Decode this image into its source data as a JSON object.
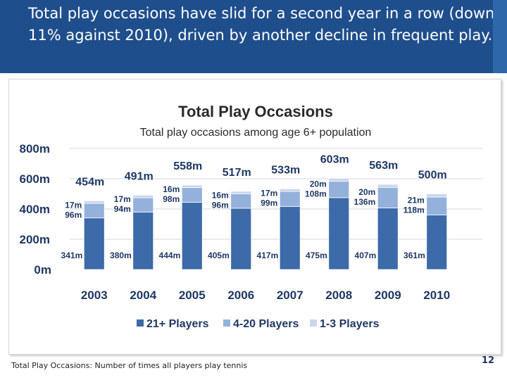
{
  "slide": {
    "title": "Total play occasions have slid for a second year in a row (down 11% against 2010), driven by another decline in frequent play.",
    "footnote": "Total Play Occasions:  Number of times all players play tennis",
    "page_number": "12"
  },
  "colors": {
    "header_bg": "#1f4e8c",
    "players_21": "#3d6aa8",
    "players_4_20": "#94b1dc",
    "players_1_3": "#c9d6ec",
    "text_navy": "#1f3864"
  },
  "chart_data": {
    "type": "bar",
    "stacked": true,
    "title": "Total Play Occasions",
    "subtitle": "Total play occasions among age 6+ population",
    "categories": [
      "2003",
      "2004",
      "2005",
      "2006",
      "2007",
      "2008",
      "2009",
      "2010"
    ],
    "ylim": [
      0,
      800
    ],
    "yticks": [
      0,
      200,
      400,
      600,
      800
    ],
    "ytick_labels": [
      "0m",
      "200m",
      "400m",
      "600m",
      "800m"
    ],
    "grid": true,
    "legend_position": "bottom",
    "series": [
      {
        "name": "21+ Players",
        "values": [
          341,
          380,
          444,
          405,
          417,
          475,
          407,
          361
        ],
        "labels": [
          "341m",
          "380m",
          "444m",
          "405m",
          "417m",
          "475m",
          "407m",
          "361m"
        ]
      },
      {
        "name": "4-20 Players",
        "values": [
          96,
          94,
          98,
          96,
          99,
          108,
          136,
          118
        ],
        "labels": [
          "96m",
          "94m",
          "98m",
          "96m",
          "99m",
          "108m",
          "136m",
          "118m"
        ]
      },
      {
        "name": "1-3 Players",
        "values": [
          17,
          17,
          16,
          16,
          17,
          20,
          20,
          21
        ],
        "labels": [
          "17m",
          "17m",
          "16m",
          "16m",
          "17m",
          "20m",
          "20m",
          "21m"
        ]
      }
    ],
    "totals": [
      454,
      491,
      558,
      517,
      533,
      603,
      563,
      500
    ],
    "total_labels": [
      "454m",
      "491m",
      "558m",
      "517m",
      "533m",
      "603m",
      "563m",
      "500m"
    ]
  }
}
